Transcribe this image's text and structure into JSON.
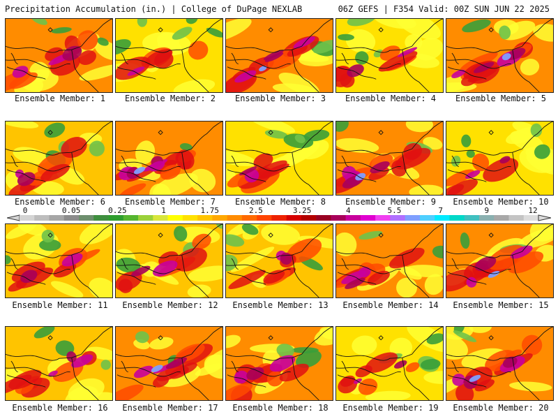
{
  "header": {
    "title_left": "Precipitation Accumulation (in.) | College of DuPage NEXLAB",
    "title_right": "06Z GEFS | F354 Valid: 00Z SUN JUN 22 2025"
  },
  "panels": [
    {
      "label": "Ensemble Member: 1",
      "wet": 0.72
    },
    {
      "label": "Ensemble Member: 2",
      "wet": 0.45
    },
    {
      "label": "Ensemble Member: 3",
      "wet": 0.78
    },
    {
      "label": "Ensemble Member: 4",
      "wet": 0.55
    },
    {
      "label": "Ensemble Member: 5",
      "wet": 0.8
    },
    {
      "label": "Ensemble Member: 6",
      "wet": 0.6
    },
    {
      "label": "Ensemble Member: 7",
      "wet": 0.88
    },
    {
      "label": "Ensemble Member: 8",
      "wet": 0.55
    },
    {
      "label": "Ensemble Member: 9",
      "wet": 0.8
    },
    {
      "label": "Ensemble Member: 10",
      "wet": 0.5
    },
    {
      "label": "Ensemble Member: 11",
      "wet": 0.62
    },
    {
      "label": "Ensemble Member: 12",
      "wet": 0.6
    },
    {
      "label": "Ensemble Member: 13",
      "wet": 0.58
    },
    {
      "label": "Ensemble Member: 14",
      "wet": 0.74
    },
    {
      "label": "Ensemble Member: 15",
      "wet": 0.75
    },
    {
      "label": "Ensemble Member: 16",
      "wet": 0.66
    },
    {
      "label": "Ensemble Member: 17",
      "wet": 0.76
    },
    {
      "label": "Ensemble Member: 18",
      "wet": 0.72
    },
    {
      "label": "Ensemble Member: 19",
      "wet": 0.55
    },
    {
      "label": "Ensemble Member: 20",
      "wet": 0.8
    }
  ],
  "colorbar": {
    "labels": [
      "0",
      "0.05",
      "0.25",
      "1",
      "1.75",
      "2.5",
      "3.25",
      "4",
      "5.5",
      "7",
      "9",
      "12"
    ],
    "colors": [
      "#d4d4d4",
      "#bdbdbd",
      "#a6a6a6",
      "#8c8c8c",
      "#6e8f6e",
      "#3f8f3f",
      "#2e9d2e",
      "#55b52f",
      "#9bd13a",
      "#d8e63c",
      "#ffff00",
      "#ffe100",
      "#ffc400",
      "#ffa800",
      "#ff8c00",
      "#ff6a00",
      "#ff4400",
      "#ee2200",
      "#d60000",
      "#b30000",
      "#990022",
      "#a8005a",
      "#c8009c",
      "#e000d0",
      "#f040f0",
      "#b070ff",
      "#7f9fff",
      "#4fcfff",
      "#00eaff",
      "#00d8c8",
      "#40c0c0",
      "#8ab0b0",
      "#a8a8a8",
      "#c4c4c4",
      "#dcdcdc"
    ]
  }
}
